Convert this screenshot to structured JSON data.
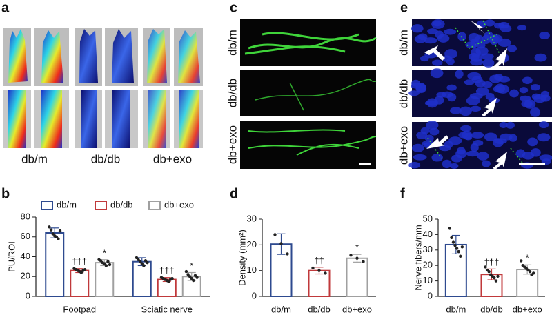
{
  "figure": {
    "panels": [
      "a",
      "b",
      "c",
      "d",
      "e",
      "f"
    ],
    "a_labels": [
      "db/m",
      "db/db",
      "db+exo"
    ],
    "c_rows": [
      "db/m",
      "db/db",
      "db+exo"
    ],
    "e_rows": [
      "db/m",
      "db/db",
      "db+exo"
    ]
  },
  "chart_data": [
    {
      "type": "bar",
      "ylabel": "PU/ROI",
      "categories": [
        "Footpad",
        "Sciatic nerve"
      ],
      "ylim": [
        0,
        80
      ],
      "yticks": [
        0,
        20,
        40,
        60,
        80
      ],
      "legend": "top",
      "series": [
        {
          "name": "db/m",
          "color": "#2e4a8f",
          "values": [
            64,
            35
          ],
          "errors": [
            5,
            4
          ],
          "points": [
            [
              70,
              67,
              63,
              61,
              60,
              58,
              66
            ],
            [
              39,
              37,
              35,
              33,
              31,
              36,
              34
            ]
          ],
          "labels": [
            null,
            null
          ]
        },
        {
          "name": "db/db",
          "color": "#c0393b",
          "values": [
            26,
            17
          ],
          "errors": [
            2,
            2
          ],
          "points": [
            [
              28,
              27,
              26,
              25,
              24,
              26,
              27
            ],
            [
              19,
              18,
              17,
              16,
              15,
              17,
              18
            ]
          ],
          "labels": [
            "†††",
            "†††"
          ]
        },
        {
          "name": "db+exo",
          "color": "#a0a0a0",
          "values": [
            34,
            20
          ],
          "errors": [
            3,
            4
          ],
          "points": [
            [
              37,
              36,
              34,
              33,
              31,
              35,
              32
            ],
            [
              25,
              22,
              20,
              18,
              16,
              21,
              19
            ]
          ],
          "labels": [
            "*",
            "*"
          ]
        }
      ]
    },
    {
      "type": "bar",
      "ylabel": "Density (mm²)",
      "categories": [
        "db/m",
        "db/db",
        "db+exo"
      ],
      "ylim": [
        0,
        30
      ],
      "yticks": [
        0,
        10,
        20,
        30
      ],
      "values": [
        20.3,
        10,
        14.8
      ],
      "errors": [
        4,
        1.3,
        1.5
      ],
      "colors": [
        "#2e4a8f",
        "#c0393b",
        "#a0a0a0"
      ],
      "points": [
        [
          24,
          20.5,
          16.5
        ],
        [
          11,
          10,
          9
        ],
        [
          16,
          14.8,
          13.5
        ]
      ],
      "labels": [
        null,
        "††",
        "*"
      ]
    },
    {
      "type": "bar",
      "ylabel": "Nerve fibers/mm",
      "categories": [
        "db/m",
        "db/db",
        "db+exo"
      ],
      "ylim": [
        0,
        50
      ],
      "yticks": [
        0,
        10,
        20,
        30,
        40,
        50
      ],
      "values": [
        33.5,
        14.2,
        17.4
      ],
      "errors": [
        6,
        3.5,
        3
      ],
      "colors": [
        "#2e4a8f",
        "#c0393b",
        "#a0a0a0"
      ],
      "points": [
        [
          44,
          38,
          35,
          33,
          31,
          29,
          26,
          32
        ],
        [
          19,
          17,
          16,
          14,
          13,
          12,
          10,
          13
        ],
        [
          23,
          20,
          19,
          18,
          17,
          16,
          14,
          15
        ]
      ],
      "labels": [
        null,
        "†††",
        "*"
      ]
    }
  ]
}
